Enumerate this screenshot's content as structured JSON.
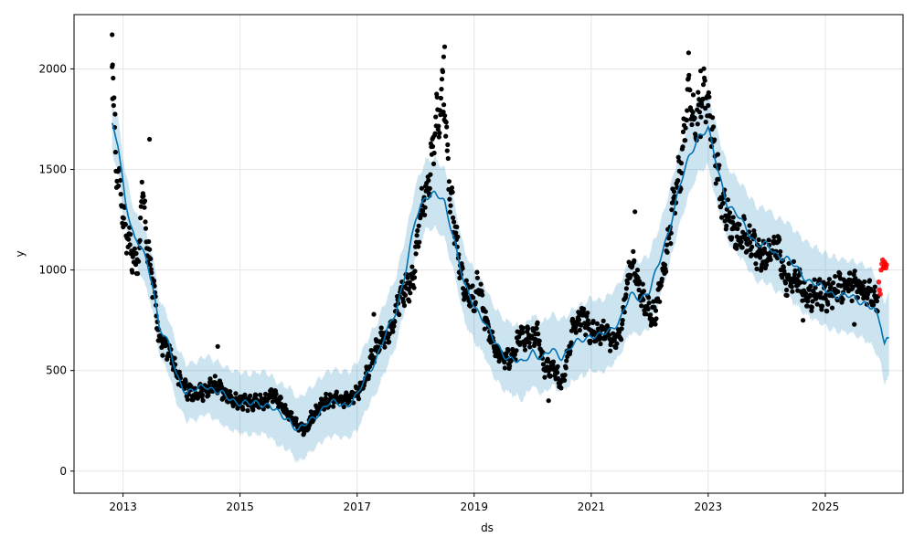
{
  "chart_data": {
    "type": "scatter",
    "title": "",
    "xlabel": "ds",
    "ylabel": "y",
    "x_range": [
      "2012-03-01",
      "2026-05-01"
    ],
    "ylim": [
      -110,
      2270
    ],
    "grid": true,
    "legend": "none",
    "x_ticks": [
      "2013",
      "2015",
      "2017",
      "2019",
      "2021",
      "2023",
      "2025"
    ],
    "x_tick_dates": [
      "2013-01-01",
      "2015-01-01",
      "2017-01-01",
      "2019-01-01",
      "2021-01-01",
      "2023-01-01",
      "2025-01-01"
    ],
    "y_ticks": [
      0,
      500,
      1000,
      1500,
      2000
    ],
    "colors": {
      "observed": "#000000",
      "forecast_line": "#0072B2",
      "uncertainty_band": "#0072B2",
      "recent_points": "#ff0000",
      "grid": "#e5e5e5"
    },
    "series": [
      {
        "kind": "forecast",
        "points": [
          [
            "2012-10-25",
            1710
          ],
          [
            "2012-12-01",
            1620
          ],
          [
            "2013-01-15",
            1350
          ],
          [
            "2013-03-15",
            1150
          ],
          [
            "2013-05-01",
            1100
          ],
          [
            "2013-07-01",
            950
          ],
          [
            "2013-08-15",
            720
          ],
          [
            "2013-10-15",
            620
          ],
          [
            "2013-12-01",
            480
          ],
          [
            "2014-02-01",
            390
          ],
          [
            "2014-04-01",
            400
          ],
          [
            "2014-06-01",
            430
          ],
          [
            "2014-08-01",
            400
          ],
          [
            "2014-10-01",
            370
          ],
          [
            "2014-12-01",
            350
          ],
          [
            "2015-03-01",
            330
          ],
          [
            "2015-05-01",
            340
          ],
          [
            "2015-07-01",
            330
          ],
          [
            "2015-09-01",
            280
          ],
          [
            "2015-11-01",
            260
          ],
          [
            "2016-01-01",
            200
          ],
          [
            "2016-03-01",
            240
          ],
          [
            "2016-05-01",
            290
          ],
          [
            "2016-07-01",
            330
          ],
          [
            "2016-09-01",
            340
          ],
          [
            "2016-11-01",
            330
          ],
          [
            "2017-01-01",
            370
          ],
          [
            "2017-03-01",
            480
          ],
          [
            "2017-05-01",
            560
          ],
          [
            "2017-07-01",
            680
          ],
          [
            "2017-09-01",
            800
          ],
          [
            "2017-11-01",
            1000
          ],
          [
            "2018-01-01",
            1250
          ],
          [
            "2018-03-01",
            1370
          ],
          [
            "2018-05-01",
            1380
          ],
          [
            "2018-07-01",
            1330
          ],
          [
            "2018-09-01",
            1150
          ],
          [
            "2018-11-01",
            920
          ],
          [
            "2019-01-01",
            820
          ],
          [
            "2019-03-01",
            760
          ],
          [
            "2019-05-01",
            650
          ],
          [
            "2019-07-01",
            580
          ],
          [
            "2019-09-01",
            560
          ],
          [
            "2019-11-01",
            530
          ],
          [
            "2020-01-01",
            600
          ],
          [
            "2020-03-01",
            560
          ],
          [
            "2020-05-01",
            600
          ],
          [
            "2020-07-01",
            570
          ],
          [
            "2020-09-01",
            620
          ],
          [
            "2020-11-01",
            650
          ],
          [
            "2021-01-01",
            680
          ],
          [
            "2021-03-01",
            670
          ],
          [
            "2021-05-01",
            700
          ],
          [
            "2021-07-01",
            760
          ],
          [
            "2021-09-01",
            870
          ],
          [
            "2021-11-01",
            860
          ],
          [
            "2022-01-01",
            900
          ],
          [
            "2022-03-01",
            1030
          ],
          [
            "2022-05-01",
            1200
          ],
          [
            "2022-07-01",
            1400
          ],
          [
            "2022-09-01",
            1550
          ],
          [
            "2022-11-01",
            1670
          ],
          [
            "2023-01-01",
            1700
          ],
          [
            "2023-03-01",
            1500
          ],
          [
            "2023-05-01",
            1330
          ],
          [
            "2023-07-01",
            1270
          ],
          [
            "2023-09-01",
            1200
          ],
          [
            "2023-11-01",
            1130
          ],
          [
            "2024-01-01",
            1120
          ],
          [
            "2024-03-01",
            1080
          ],
          [
            "2024-05-01",
            1060
          ],
          [
            "2024-07-01",
            1010
          ],
          [
            "2024-09-01",
            960
          ],
          [
            "2024-11-01",
            930
          ],
          [
            "2025-01-01",
            900
          ],
          [
            "2025-03-01",
            880
          ],
          [
            "2025-05-01",
            870
          ],
          [
            "2025-07-01",
            860
          ],
          [
            "2025-09-01",
            840
          ],
          [
            "2025-11-01",
            800
          ],
          [
            "2025-12-15",
            720
          ],
          [
            "2026-01-05",
            640
          ],
          [
            "2026-01-20",
            660
          ],
          [
            "2026-02-05",
            665
          ]
        ],
        "band_width": [
          [
            "2012-10-25",
            130
          ],
          [
            "2015-01-01",
            150
          ],
          [
            "2017-06-01",
            170
          ],
          [
            "2019-06-01",
            175
          ],
          [
            "2021-06-01",
            180
          ],
          [
            "2023-06-01",
            185
          ],
          [
            "2025-06-01",
            180
          ],
          [
            "2025-12-01",
            190
          ],
          [
            "2026-02-05",
            210
          ]
        ]
      },
      {
        "kind": "observed",
        "anchors": [
          [
            "2012-10-25",
            2000
          ],
          [
            "2012-11-05",
            1800
          ],
          [
            "2012-11-20",
            1500
          ],
          [
            "2012-12-10",
            1400
          ],
          [
            "2013-01-01",
            1250
          ],
          [
            "2013-02-15",
            1100
          ],
          [
            "2013-03-15",
            1050
          ],
          [
            "2013-04-15",
            1060
          ],
          [
            "2013-05-01",
            1500
          ],
          [
            "2013-05-20",
            1230
          ],
          [
            "2013-06-15",
            1050
          ],
          [
            "2013-07-20",
            850
          ],
          [
            "2013-08-15",
            650
          ],
          [
            "2013-10-15",
            600
          ],
          [
            "2013-12-01",
            480
          ],
          [
            "2014-02-01",
            400
          ],
          [
            "2014-04-01",
            380
          ],
          [
            "2014-06-01",
            400
          ],
          [
            "2014-08-01",
            430
          ],
          [
            "2014-10-01",
            380
          ],
          [
            "2014-12-01",
            350
          ],
          [
            "2015-03-01",
            340
          ],
          [
            "2015-06-01",
            340
          ],
          [
            "2015-08-01",
            380
          ],
          [
            "2015-10-01",
            310
          ],
          [
            "2016-01-01",
            220
          ],
          [
            "2016-02-15",
            210
          ],
          [
            "2016-04-01",
            280
          ],
          [
            "2016-06-01",
            340
          ],
          [
            "2016-08-01",
            360
          ],
          [
            "2016-10-01",
            350
          ],
          [
            "2016-12-01",
            370
          ],
          [
            "2017-02-01",
            420
          ],
          [
            "2017-04-01",
            550
          ],
          [
            "2017-06-01",
            650
          ],
          [
            "2017-08-01",
            700
          ],
          [
            "2017-10-01",
            880
          ],
          [
            "2017-12-15",
            950
          ],
          [
            "2018-02-01",
            1300
          ],
          [
            "2018-03-15",
            1400
          ],
          [
            "2018-05-15",
            1750
          ],
          [
            "2018-06-20",
            1900
          ],
          [
            "2018-08-01",
            1400
          ],
          [
            "2018-09-20",
            1100
          ],
          [
            "2018-11-01",
            900
          ],
          [
            "2019-01-01",
            850
          ],
          [
            "2019-02-01",
            950
          ],
          [
            "2019-03-01",
            800
          ],
          [
            "2019-05-01",
            620
          ],
          [
            "2019-07-01",
            560
          ],
          [
            "2019-09-01",
            560
          ],
          [
            "2019-10-15",
            680
          ],
          [
            "2019-12-15",
            650
          ],
          [
            "2020-02-01",
            700
          ],
          [
            "2020-03-15",
            500
          ],
          [
            "2020-05-15",
            520
          ],
          [
            "2020-07-01",
            420
          ],
          [
            "2020-09-01",
            680
          ],
          [
            "2020-11-01",
            780
          ],
          [
            "2021-01-01",
            680
          ],
          [
            "2021-03-01",
            700
          ],
          [
            "2021-05-01",
            650
          ],
          [
            "2021-07-01",
            660
          ],
          [
            "2021-09-01",
            1050
          ],
          [
            "2021-10-15",
            950
          ],
          [
            "2021-12-01",
            820
          ],
          [
            "2022-02-01",
            780
          ],
          [
            "2022-04-01",
            1000
          ],
          [
            "2022-06-01",
            1350
          ],
          [
            "2022-07-15",
            1500
          ],
          [
            "2022-09-01",
            1880
          ],
          [
            "2022-10-15",
            1720
          ],
          [
            "2022-12-15",
            1880
          ],
          [
            "2023-02-01",
            1650
          ],
          [
            "2023-03-15",
            1400
          ],
          [
            "2023-05-01",
            1270
          ],
          [
            "2023-07-01",
            1150
          ],
          [
            "2023-09-01",
            1170
          ],
          [
            "2023-11-01",
            1100
          ],
          [
            "2024-01-01",
            1050
          ],
          [
            "2024-03-01",
            1150
          ],
          [
            "2024-05-01",
            950
          ],
          [
            "2024-07-01",
            960
          ],
          [
            "2024-09-01",
            880
          ],
          [
            "2024-11-01",
            880
          ],
          [
            "2025-01-01",
            870
          ],
          [
            "2025-03-01",
            900
          ],
          [
            "2025-05-01",
            920
          ],
          [
            "2025-07-01",
            930
          ],
          [
            "2025-09-01",
            890
          ],
          [
            "2025-10-20",
            860
          ],
          [
            "2025-11-25",
            870
          ]
        ],
        "outliers": [
          [
            "2012-10-25",
            2170
          ],
          [
            "2012-10-28",
            2020
          ],
          [
            "2013-06-15",
            1650
          ],
          [
            "2014-08-15",
            620
          ],
          [
            "2017-04-15",
            780
          ],
          [
            "2018-07-01",
            2110
          ],
          [
            "2018-06-25",
            2060
          ],
          [
            "2021-10-01",
            1290
          ],
          [
            "2022-09-01",
            2080
          ],
          [
            "2022-11-15",
            1990
          ],
          [
            "2024-08-15",
            750
          ],
          [
            "2025-07-01",
            730
          ],
          [
            "2020-04-10",
            350
          ],
          [
            "2019-04-15",
            640
          ]
        ]
      },
      {
        "kind": "recent",
        "points": [
          [
            "2025-12-01",
            940
          ],
          [
            "2025-12-05",
            900
          ],
          [
            "2025-12-10",
            880
          ],
          [
            "2025-12-15",
            1000
          ],
          [
            "2025-12-20",
            1030
          ],
          [
            "2025-12-25",
            1050
          ],
          [
            "2025-12-30",
            1010
          ],
          [
            "2026-01-03",
            1020
          ],
          [
            "2026-01-06",
            1040
          ],
          [
            "2026-01-10",
            1030
          ],
          [
            "2026-01-14",
            1010
          ],
          [
            "2026-01-18",
            1025
          ]
        ]
      }
    ]
  }
}
